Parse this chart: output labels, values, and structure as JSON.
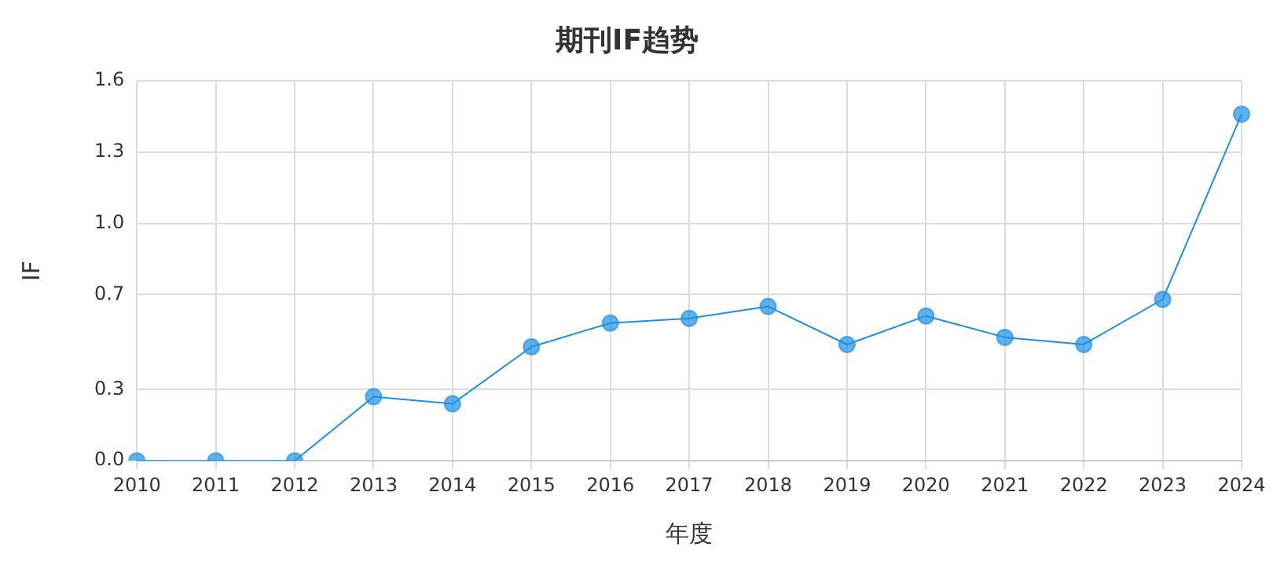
{
  "chart_data": {
    "type": "line",
    "title": "期刊IF趋势",
    "xlabel": "年度",
    "ylabel": "IF",
    "categories": [
      "2010",
      "2011",
      "2012",
      "2013",
      "2014",
      "2015",
      "2016",
      "2017",
      "2018",
      "2019",
      "2020",
      "2021",
      "2022",
      "2023",
      "2024"
    ],
    "series": [
      {
        "color": "#1a8fe3",
        "values": [
          0,
          0,
          0,
          0.27,
          0.24,
          0.48,
          0.58,
          0.6,
          0.65,
          0.49,
          0.61,
          0.52,
          0.49,
          0.68,
          1.46
        ]
      }
    ],
    "ylim": [
      0,
      1.6
    ],
    "yticks": [
      {
        "value": 0,
        "label": "0.0"
      },
      {
        "value": 0.3,
        "label": "0.3"
      },
      {
        "value": 0.7,
        "label": "0.7"
      },
      {
        "value": 1,
        "label": "1.0"
      },
      {
        "value": 1.3,
        "label": "1.3"
      },
      {
        "value": 1.6,
        "label": "1.6"
      }
    ],
    "grid": true,
    "legend": false,
    "marker": "circle",
    "line_style": "solid"
  }
}
